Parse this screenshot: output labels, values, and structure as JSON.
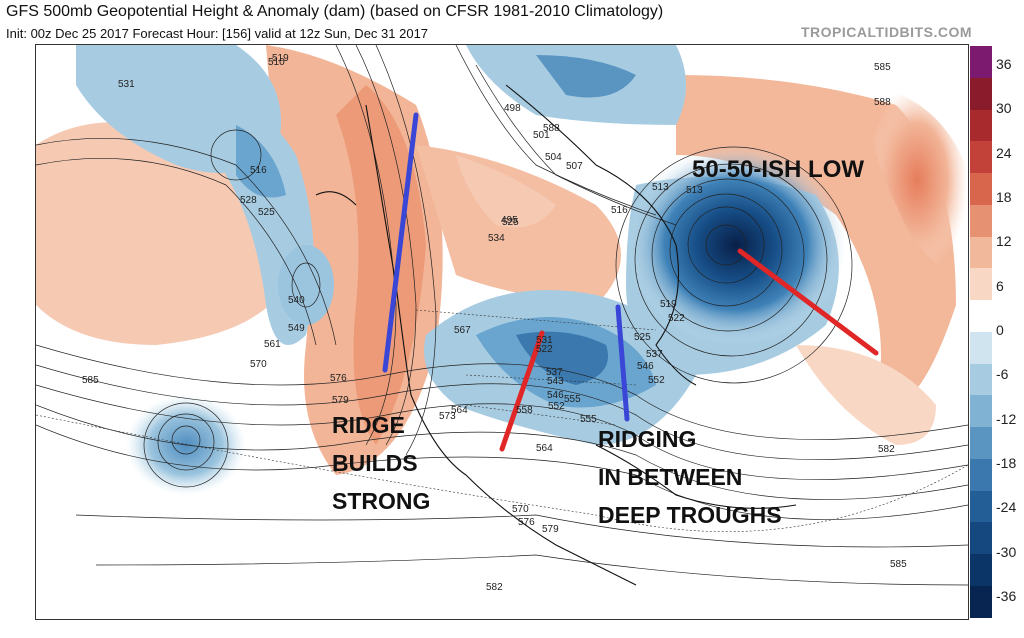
{
  "title": "GFS 500mb Geopotential Height & Anomaly (dam) (based on CFSR 1981-2010 Climatology)",
  "subtitle": "Init: 00z Dec 25 2017   Forecast Hour: [156]   valid at 12z Sun, Dec 31 2017",
  "brand": "TROPICALTIDBITS.COM",
  "annotations": {
    "low": "50-50-ISH LOW",
    "ridge_l1": "RIDGE",
    "ridge_l2": "BUILDS",
    "ridge_l3": "STRONG",
    "ridging_l1": "RIDGING",
    "ridging_l2": "IN BETWEEN",
    "ridging_l3": "DEEP TROUGHS"
  },
  "contour_labels": [
    "531",
    "519",
    "516",
    "528",
    "525",
    "540",
    "549",
    "561",
    "570",
    "585",
    "576",
    "579",
    "573",
    "564",
    "567",
    "558",
    "537",
    "543",
    "546",
    "552",
    "555",
    "531",
    "513",
    "510",
    "498",
    "501",
    "504",
    "507",
    "525",
    "534",
    "522",
    "519",
    "513",
    "516",
    "525",
    "537",
    "546",
    "552",
    "555",
    "564",
    "570",
    "576",
    "579",
    "582",
    "585",
    "588",
    "582",
    "585",
    "588",
    "495",
    "522",
    "519"
  ],
  "colorbar": {
    "ticks": [
      "36",
      "30",
      "24",
      "18",
      "12",
      "6",
      "0",
      "-6",
      "-12",
      "-18",
      "-24",
      "-30",
      "-36"
    ],
    "colors": [
      "#7b1a6f",
      "#8a1b2a",
      "#a82a2c",
      "#c2423a",
      "#d7664d",
      "#e79173",
      "#f2b89c",
      "#f8d7c5",
      "#ffffff",
      "#cfe4ef",
      "#a7cce2",
      "#7fb2d3",
      "#5a95c2",
      "#3a78ad",
      "#245e96",
      "#14487e",
      "#0b3567",
      "#082551"
    ]
  },
  "colors": {
    "positive": "#f1a98a",
    "negative": "#6aa5cf",
    "deep_low": "#0c2e5f",
    "overlay_red": "#e02626",
    "overlay_blue": "#3a46d6"
  }
}
